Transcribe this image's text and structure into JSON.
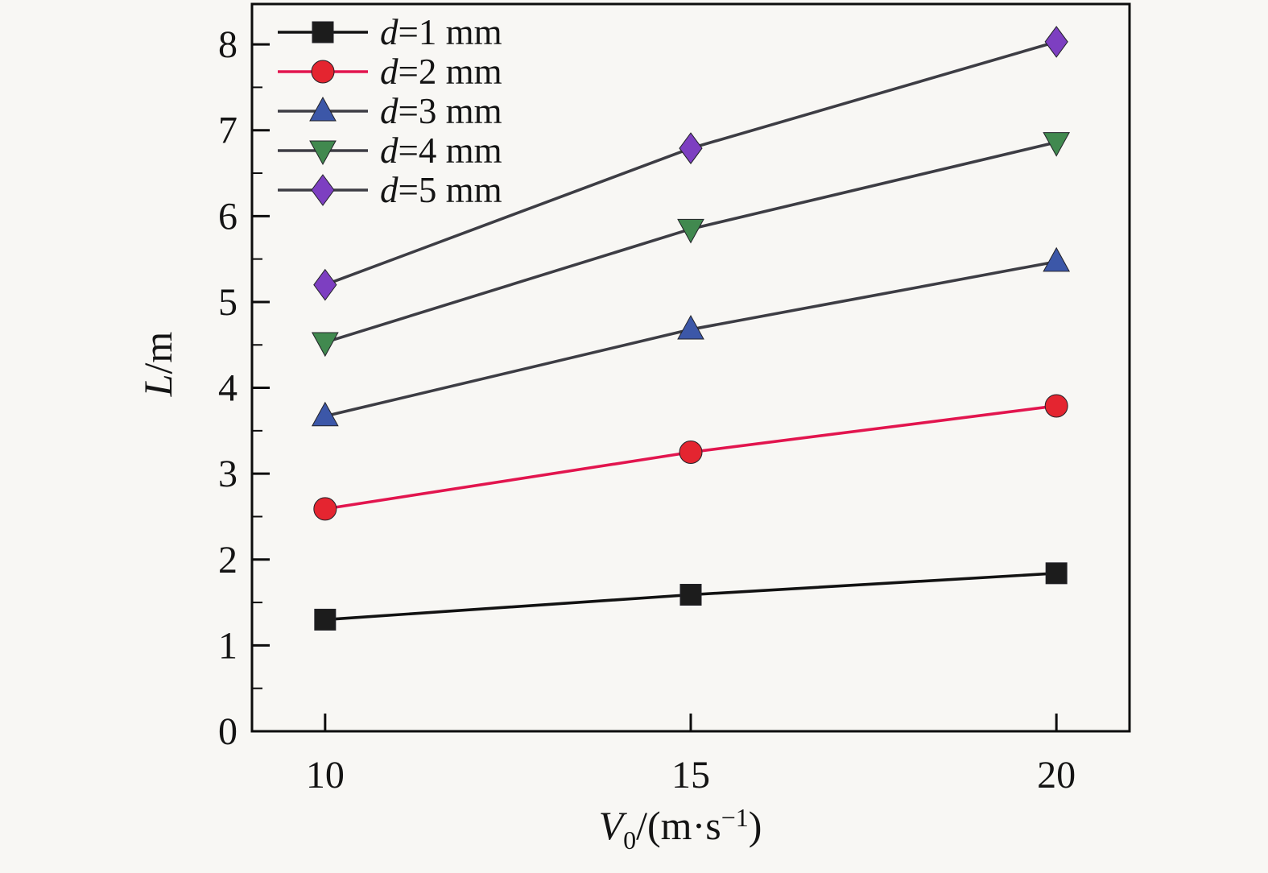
{
  "chart_data": {
    "type": "line",
    "title": "",
    "x": [
      10,
      15,
      20
    ],
    "xticks": [
      "10",
      "15",
      "20"
    ],
    "yticks": [
      "0",
      "1",
      "2",
      "3",
      "4",
      "5",
      "6",
      "7",
      "8"
    ],
    "ytick_values": [
      0,
      1,
      2,
      3,
      4,
      5,
      6,
      7,
      8
    ],
    "y_minor_step": 0.5,
    "xlim": [
      9,
      21
    ],
    "ylim": [
      0,
      8.47
    ],
    "grid": false,
    "legend_position": "top-left",
    "xlabel": {
      "italic": "V",
      "sub": "0",
      "mid": "/(m·s",
      "sup": "−1",
      "end": ")"
    },
    "ylabel": {
      "italic": "L",
      "text": "/m"
    },
    "series": [
      {
        "name": "d=1 mm",
        "label": {
          "italic": "d",
          "rest": "=1 mm"
        },
        "marker": "square",
        "marker_color": "#1c1c1c",
        "line_color": "#121212",
        "values": [
          1.3,
          1.59,
          1.84
        ]
      },
      {
        "name": "d=2 mm",
        "label": {
          "italic": "d",
          "rest": "=2 mm"
        },
        "marker": "circle",
        "marker_color": "#e42530",
        "line_color": "#e2154e",
        "values": [
          2.59,
          3.25,
          3.79
        ]
      },
      {
        "name": "d=3 mm",
        "label": {
          "italic": "d",
          "rest": "=3 mm"
        },
        "marker": "triangle-up",
        "marker_color": "#3c57a8",
        "line_color": "#3d3d44",
        "values": [
          3.67,
          4.68,
          5.47
        ]
      },
      {
        "name": "d=4 mm",
        "label": {
          "italic": "d",
          "rest": "=4 mm"
        },
        "marker": "triangle-down",
        "marker_color": "#41894f",
        "line_color": "#3d3d44",
        "values": [
          4.53,
          5.85,
          6.86
        ]
      },
      {
        "name": "d=5 mm",
        "label": {
          "italic": "d",
          "rest": "=5 mm"
        },
        "marker": "diamond",
        "marker_color": "#7d3fc1",
        "line_color": "#3d3d44",
        "values": [
          5.2,
          6.79,
          8.03
        ]
      }
    ],
    "colors": {
      "background": "#f8f7f4",
      "axis": "#0d0d0d",
      "text": "#141414"
    }
  }
}
